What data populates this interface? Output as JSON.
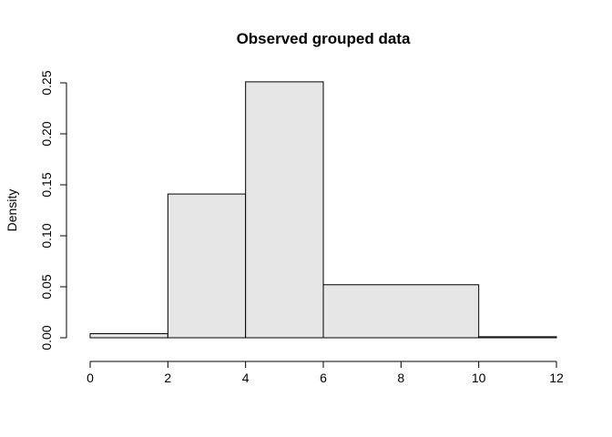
{
  "chart_data": {
    "type": "bar",
    "title": "Observed grouped data",
    "xlabel": "",
    "ylabel": "Density",
    "bins": [
      {
        "x0": 0,
        "x1": 2,
        "density": 0.004
      },
      {
        "x0": 2,
        "x1": 4,
        "density": 0.141
      },
      {
        "x0": 4,
        "x1": 6,
        "density": 0.251
      },
      {
        "x0": 6,
        "x1": 10,
        "density": 0.052
      },
      {
        "x0": 10,
        "x1": 12,
        "density": 0.001
      }
    ],
    "xlim": [
      0,
      12
    ],
    "ylim": [
      0,
      0.25
    ],
    "x_ticks": [
      0,
      2,
      4,
      6,
      8,
      10,
      12
    ],
    "x_tick_labels": [
      "0",
      "2",
      "4",
      "6",
      "8",
      "10",
      "12"
    ],
    "y_ticks": [
      0,
      0.05,
      0.1,
      0.15,
      0.2,
      0.25
    ],
    "y_tick_labels": [
      "0.00",
      "0.05",
      "0.10",
      "0.15",
      "0.20",
      "0.25"
    ],
    "bar_fill": "#e6e6e6",
    "bar_stroke": "#000000",
    "grid": false
  }
}
